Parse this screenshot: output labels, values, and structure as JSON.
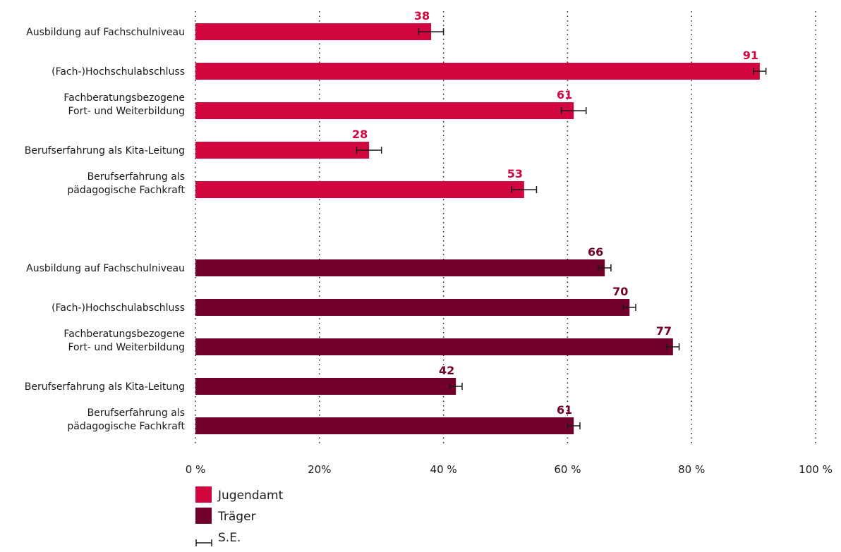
{
  "chart_data": {
    "type": "bar",
    "orientation": "horizontal",
    "grid": true,
    "xlim": [
      0,
      100
    ],
    "legend_placement": "bottom-left",
    "tick_labels": [
      "0 %",
      "20%",
      "40 %",
      "60 %",
      "80 %",
      "100 %"
    ],
    "tick_values": [
      0,
      20,
      40,
      60,
      80,
      100
    ],
    "groups": [
      {
        "series": "Jugendamt",
        "color": "#d1063e",
        "categories": [
          [
            "Ausbildung auf Fachschulniveau"
          ],
          [
            "(Fach-)Hochschulabschluss"
          ],
          [
            "Fachberatungsbezogene",
            "Fort- und Weiterbildung"
          ],
          [
            "Berufserfahrung als Kita-Leitung"
          ],
          [
            "Berufserfahrung als",
            "pädagogische Fachkraft"
          ]
        ],
        "values": [
          38,
          91,
          61,
          28,
          53
        ],
        "se": [
          2,
          1,
          2,
          2,
          2
        ]
      },
      {
        "series": "Träger",
        "color": "#71002a",
        "categories": [
          [
            "Ausbildung auf Fachschulniveau"
          ],
          [
            "(Fach-)Hochschulabschluss"
          ],
          [
            "Fachberatungsbezogene",
            "Fort- und Weiterbildung"
          ],
          [
            "Berufserfahrung als Kita-Leitung"
          ],
          [
            "Berufserfahrung als",
            "pädagogische Fachkraft"
          ]
        ],
        "values": [
          66,
          70,
          77,
          42,
          61
        ],
        "se": [
          1,
          1,
          1,
          1,
          1
        ]
      }
    ],
    "legend": [
      {
        "label": "Jugendamt",
        "kind": "swatch",
        "color": "#d1063e"
      },
      {
        "label": "Träger",
        "kind": "swatch",
        "color": "#71002a"
      },
      {
        "label": "S.E.",
        "kind": "errorbar",
        "color": "#1a1a1a"
      }
    ]
  }
}
